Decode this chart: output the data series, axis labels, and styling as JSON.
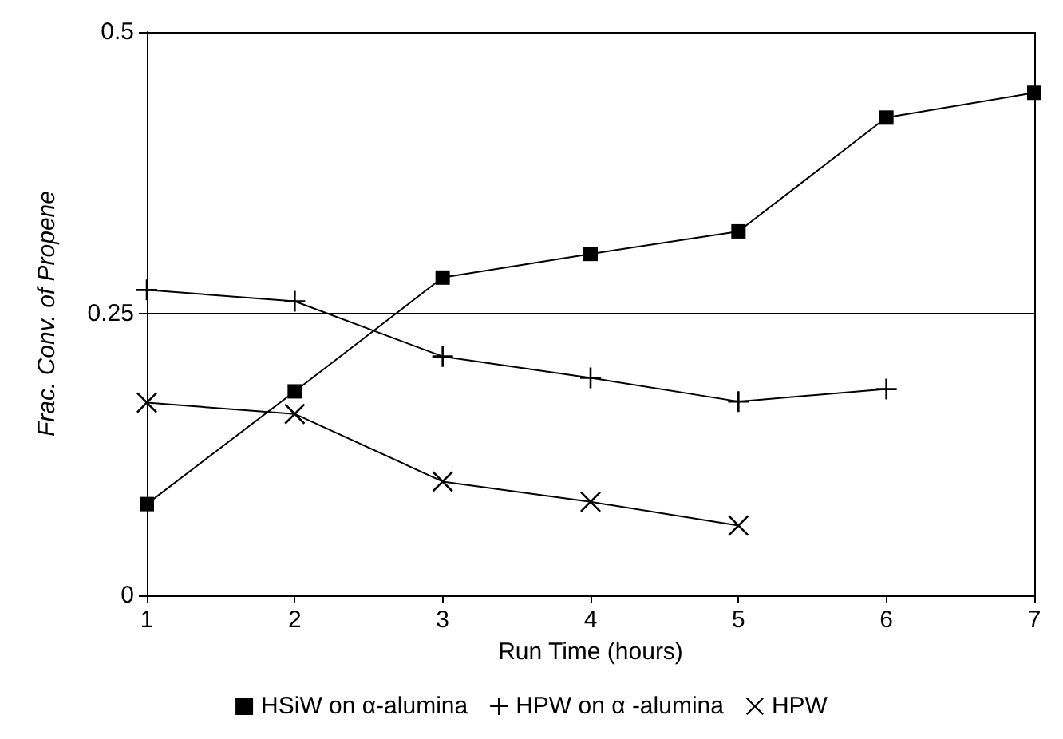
{
  "chart_data": {
    "type": "line",
    "xlabel": "Run Time (hours)",
    "ylabel": "Frac. Conv. of Propene",
    "x": [
      1,
      2,
      3,
      4,
      5,
      6,
      7
    ],
    "series": [
      {
        "name": "HSiW on α-alumina",
        "color": "#000000",
        "marker": "square",
        "values": [
          0.081,
          0.181,
          0.282,
          0.303,
          0.323,
          0.424,
          0.446
        ]
      },
      {
        "name": "HPW on α -alumina",
        "color": "#000000",
        "marker": "cross",
        "values": [
          0.271,
          0.261,
          0.212,
          0.193,
          0.172,
          0.183,
          null
        ]
      },
      {
        "name": "HPW",
        "color": "#000000",
        "marker": "x",
        "values": [
          0.171,
          0.161,
          0.101,
          0.083,
          0.062,
          null,
          null
        ]
      }
    ],
    "xlim": [
      1,
      7
    ],
    "xticks": [
      1,
      2,
      3,
      4,
      5,
      6,
      7
    ],
    "ylim": [
      0,
      0.5
    ],
    "yticks": [
      0,
      0.25,
      0.5
    ],
    "grid": "y",
    "legend": "bottom",
    "line_style": "solid"
  }
}
